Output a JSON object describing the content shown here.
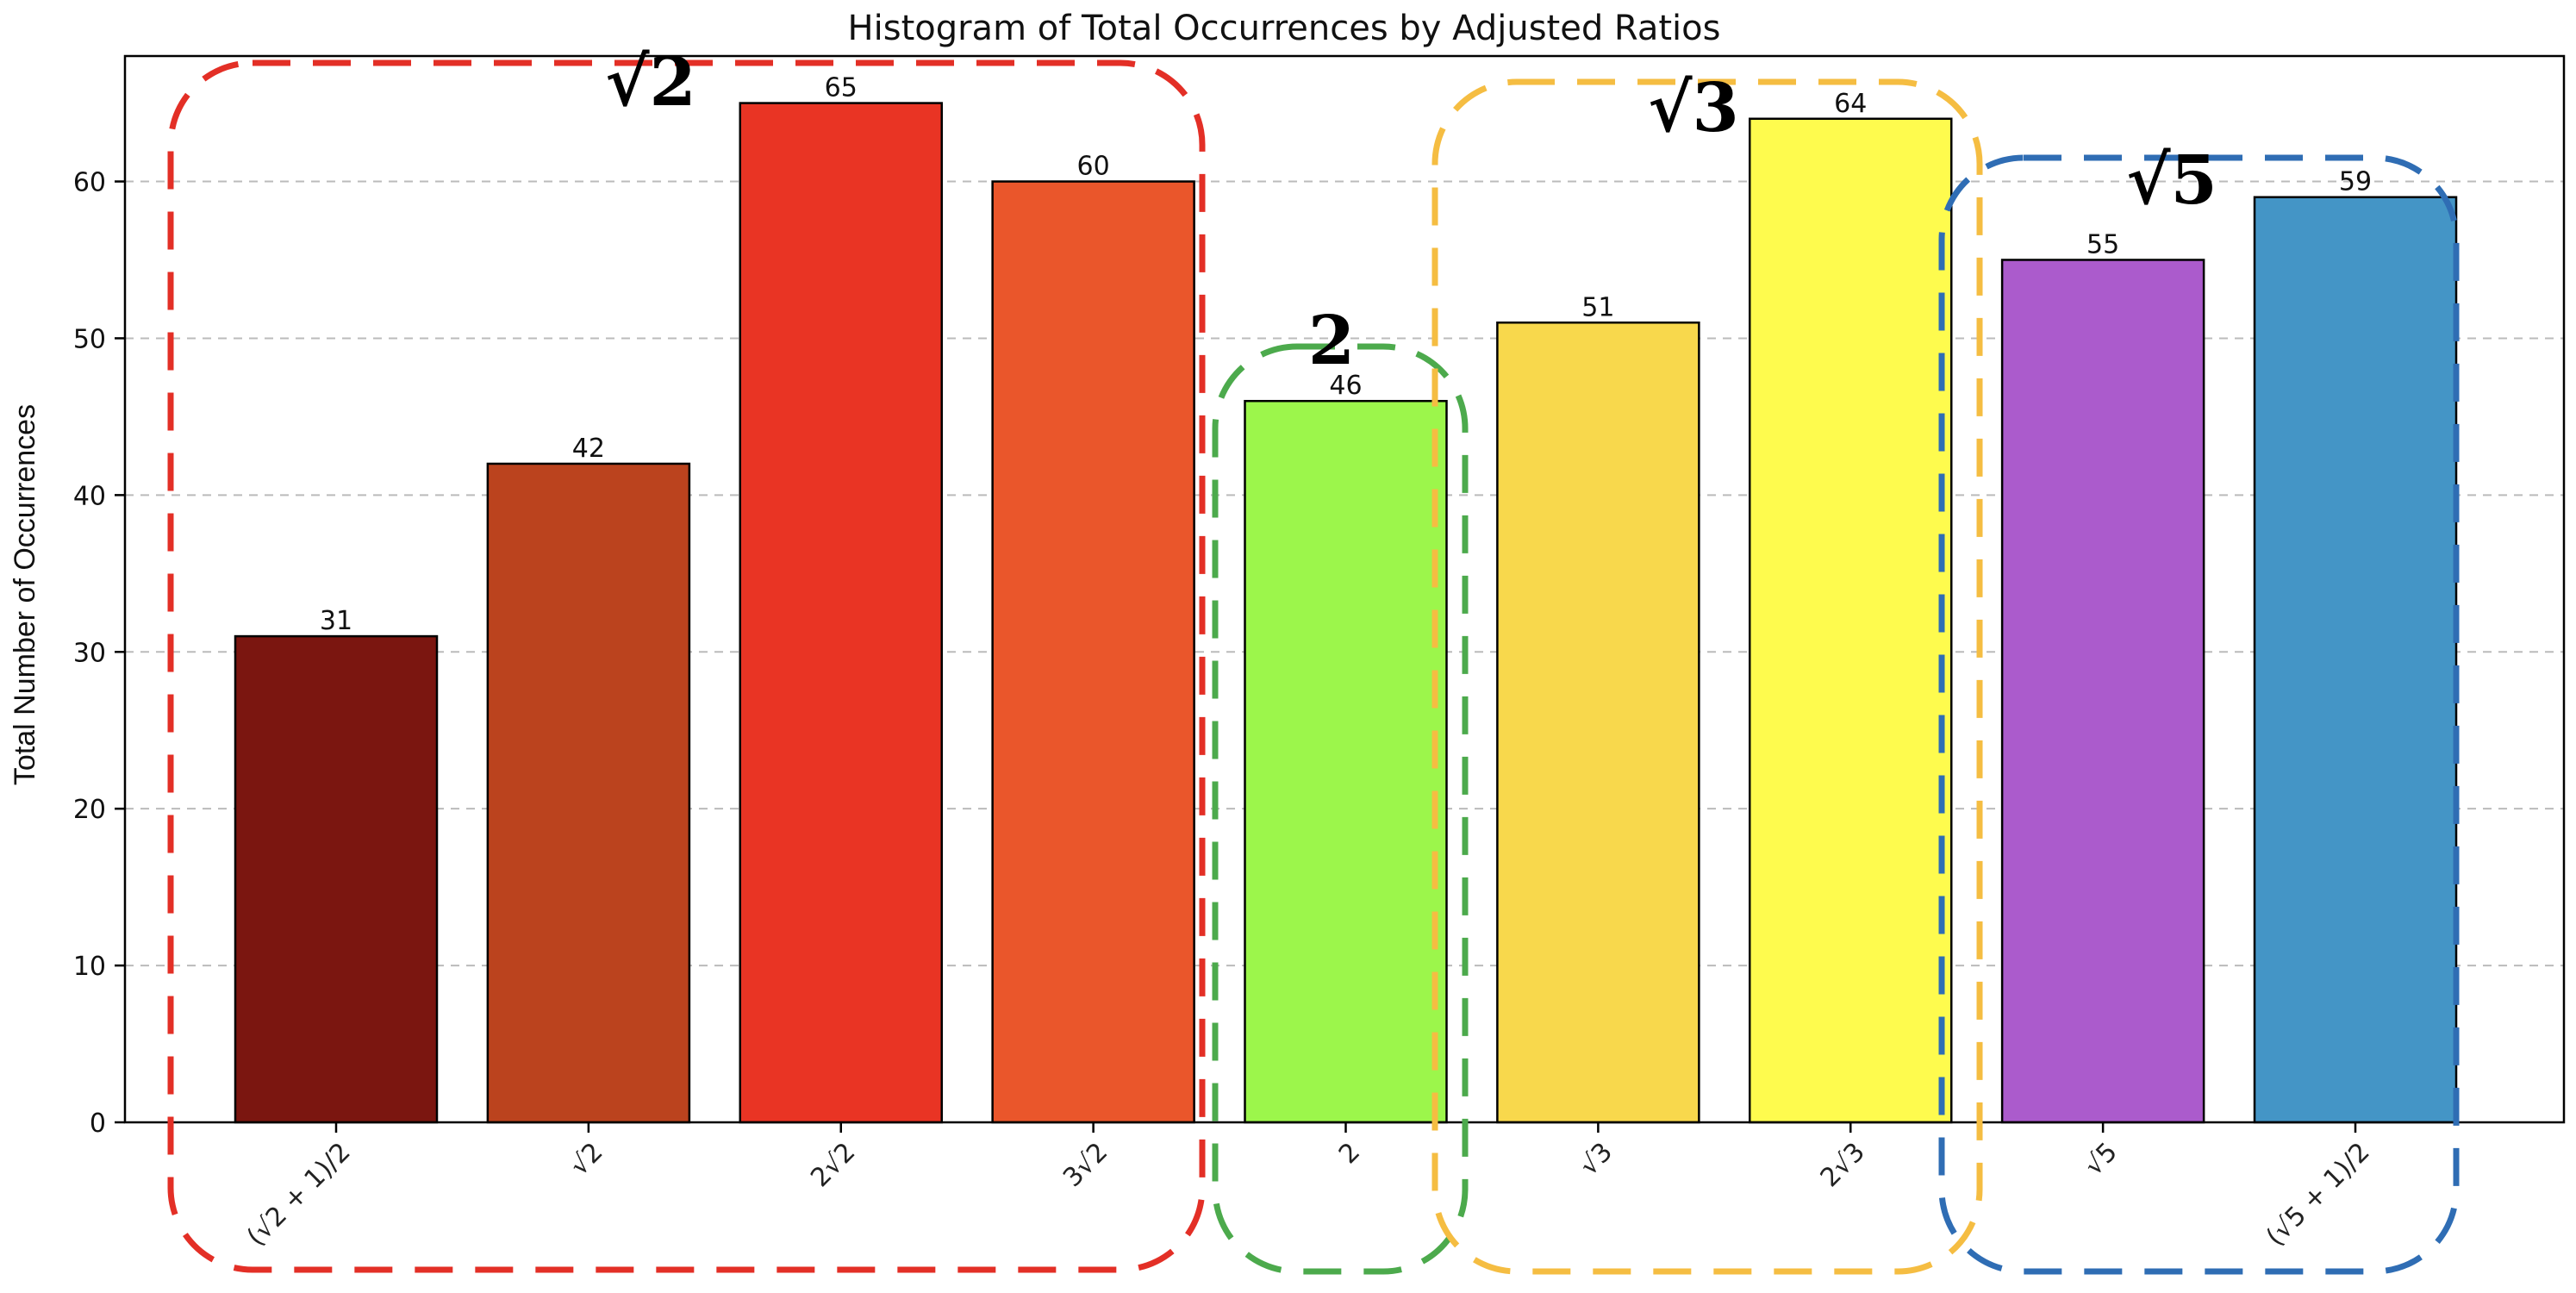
{
  "chart_data": {
    "type": "bar",
    "title": "Histogram of Total Occurrences by Adjusted Ratios",
    "xlabel": "",
    "ylabel": "Total Number of Occurrences",
    "ylim": [
      0,
      68
    ],
    "yticks": [
      0,
      10,
      20,
      30,
      40,
      50,
      60
    ],
    "grid": "y-dashed",
    "categories": [
      "(√2 + 1)/2",
      "√2",
      "2√2",
      "3√2",
      "2",
      "√3",
      "2√3",
      "√5",
      "(√5 + 1)/2"
    ],
    "values": [
      31,
      42,
      65,
      60,
      46,
      51,
      64,
      55,
      59
    ],
    "bar_colors": [
      "#7b1610",
      "#bb431e",
      "#e93424",
      "#ea562b",
      "#9cf64b",
      "#f8d84c",
      "#fefb4e",
      "#ab5bcc",
      "#4495c6"
    ],
    "groups": [
      {
        "label": "√2",
        "color": "#e32f26",
        "categories": [
          "(√2 + 1)/2",
          "√2",
          "2√2",
          "3√2"
        ]
      },
      {
        "label": "2",
        "color": "#4caa4c",
        "categories": [
          "2"
        ]
      },
      {
        "label": "√3",
        "color": "#f5bd42",
        "categories": [
          "√3",
          "2√3"
        ]
      },
      {
        "label": "√5",
        "color": "#2f6db4",
        "categories": [
          "√5",
          "(√5 + 1)/2"
        ]
      }
    ]
  }
}
